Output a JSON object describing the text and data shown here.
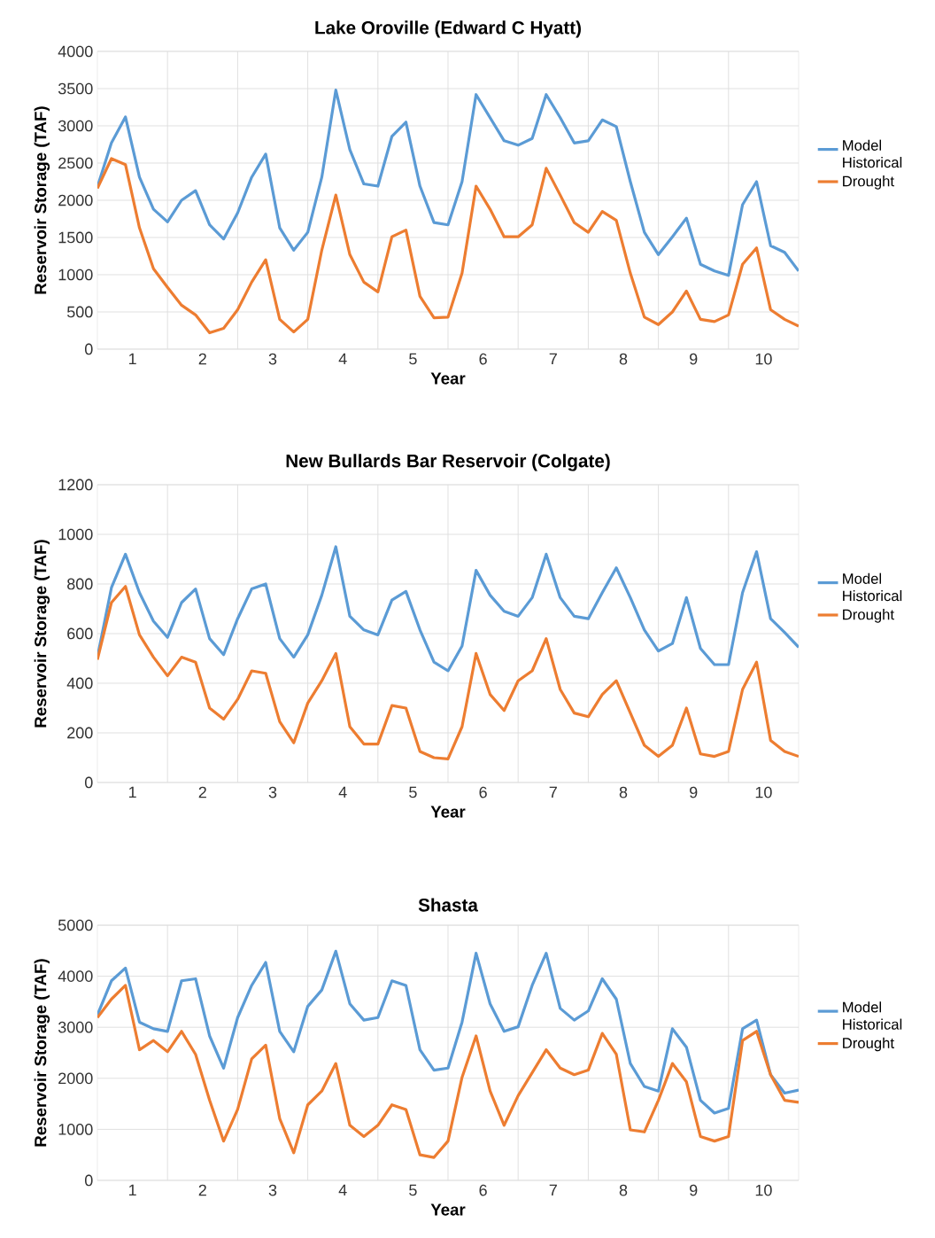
{
  "chart_data": [
    {
      "type": "line",
      "title": "Lake Oroville (Edward C Hyatt)",
      "xlabel": "Year",
      "ylabel": "Reservoir Storage (TAF)",
      "x": [
        0.5,
        0.7,
        0.9,
        1.1,
        1.3,
        1.5,
        1.7,
        1.9,
        2.1,
        2.3,
        2.5,
        2.7,
        2.9,
        3.1,
        3.3,
        3.5,
        3.7,
        3.9,
        4.1,
        4.3,
        4.5,
        4.7,
        4.9,
        5.1,
        5.3,
        5.5,
        5.7,
        5.9,
        6.1,
        6.3,
        6.5,
        6.7,
        6.9,
        7.1,
        7.3,
        7.5,
        7.7,
        7.9,
        8.1,
        8.3,
        8.5,
        8.7,
        8.9,
        9.1,
        9.3,
        9.5,
        9.7,
        9.9,
        10.1,
        10.3,
        10.5
      ],
      "series": [
        {
          "name": "Model Historical",
          "color": "#5b9bd5",
          "values": [
            2180,
            2770,
            3120,
            2310,
            1880,
            1710,
            2000,
            2130,
            1670,
            1480,
            1830,
            2310,
            2620,
            1630,
            1330,
            1570,
            2310,
            3480,
            2680,
            2220,
            2190,
            2860,
            3050,
            2190,
            1700,
            1670,
            2250,
            3420,
            3110,
            2800,
            2740,
            2830,
            3420,
            3110,
            2770,
            2800,
            3080,
            2990,
            2250,
            1570,
            1270,
            1510,
            1760,
            1140,
            1050,
            990,
            1940,
            2250,
            1390,
            1300,
            1050
          ]
        },
        {
          "name": "Drought",
          "color": "#ed7d31",
          "values": [
            2160,
            2560,
            2480,
            1630,
            1080,
            830,
            590,
            460,
            220,
            280,
            530,
            900,
            1200,
            400,
            230,
            400,
            1330,
            2070,
            1270,
            900,
            770,
            1510,
            1600,
            710,
            420,
            430,
            1020,
            2190,
            1880,
            1510,
            1510,
            1670,
            2430,
            2070,
            1700,
            1570,
            1850,
            1730,
            1020,
            430,
            330,
            500,
            780,
            400,
            370,
            460,
            1140,
            1360,
            530,
            400,
            310
          ]
        }
      ],
      "xlim": [
        0.5,
        10.5
      ],
      "ylim": [
        0,
        4000
      ],
      "xticks": [
        1,
        {
          "value": 1.5,
          "label": null
        },
        2,
        {
          "value": 2.5,
          "label": null
        },
        3,
        {
          "value": 3.5,
          "label": null
        },
        4,
        {
          "value": 4.5,
          "label": null
        },
        5,
        {
          "value": 5.5,
          "label": null
        },
        6,
        {
          "value": 6.5,
          "label": null
        },
        7,
        {
          "value": 7.5,
          "label": null
        },
        8,
        {
          "value": 8.5,
          "label": null
        },
        9,
        {
          "value": 9.5,
          "label": null
        },
        10
      ],
      "yticks": [
        0,
        500,
        1000,
        1500,
        2000,
        2500,
        3000,
        3500,
        4000
      ],
      "grid": true,
      "legend": "right"
    },
    {
      "type": "line",
      "title": "New Bullards Bar Reservoir (Colgate)",
      "xlabel": "Year",
      "ylabel": "Reservoir Storage (TAF)",
      "x": [
        0.5,
        0.7,
        0.9,
        1.1,
        1.3,
        1.5,
        1.7,
        1.9,
        2.1,
        2.3,
        2.5,
        2.7,
        2.9,
        3.1,
        3.3,
        3.5,
        3.7,
        3.9,
        4.1,
        4.3,
        4.5,
        4.7,
        4.9,
        5.1,
        5.3,
        5.5,
        5.7,
        5.9,
        6.1,
        6.3,
        6.5,
        6.7,
        6.9,
        7.1,
        7.3,
        7.5,
        7.7,
        7.9,
        8.1,
        8.3,
        8.5,
        8.7,
        8.9,
        9.1,
        9.3,
        9.5,
        9.7,
        9.9,
        10.1,
        10.3,
        10.5
      ],
      "series": [
        {
          "name": "Model Historical",
          "color": "#5b9bd5",
          "values": [
            505,
            785,
            920,
            765,
            650,
            585,
            725,
            780,
            580,
            515,
            660,
            780,
            800,
            580,
            505,
            595,
            755,
            950,
            670,
            615,
            595,
            735,
            770,
            615,
            485,
            450,
            550,
            855,
            755,
            690,
            670,
            745,
            920,
            745,
            670,
            660,
            765,
            865,
            745,
            615,
            530,
            560,
            745,
            540,
            475,
            475,
            765,
            930,
            660,
            605,
            545
          ]
        },
        {
          "name": "Drought",
          "color": "#ed7d31",
          "values": [
            495,
            725,
            790,
            595,
            505,
            430,
            505,
            485,
            300,
            255,
            335,
            450,
            440,
            245,
            160,
            320,
            410,
            520,
            225,
            155,
            155,
            310,
            300,
            125,
            100,
            95,
            225,
            520,
            355,
            290,
            410,
            450,
            580,
            375,
            280,
            265,
            355,
            410,
            280,
            150,
            105,
            150,
            300,
            115,
            105,
            125,
            375,
            485,
            170,
            125,
            105
          ]
        }
      ],
      "xlim": [
        0.5,
        10.5
      ],
      "ylim": [
        0,
        1200
      ],
      "xticks": [
        1,
        {
          "value": 1.5,
          "label": null
        },
        2,
        {
          "value": 2.5,
          "label": null
        },
        3,
        {
          "value": 3.5,
          "label": null
        },
        4,
        {
          "value": 4.5,
          "label": null
        },
        5,
        {
          "value": 5.5,
          "label": null
        },
        6,
        {
          "value": 6.5,
          "label": null
        },
        7,
        {
          "value": 7.5,
          "label": null
        },
        8,
        {
          "value": 8.5,
          "label": null
        },
        9,
        {
          "value": 9.5,
          "label": null
        },
        10
      ],
      "yticks": [
        0,
        200,
        400,
        600,
        800,
        1000,
        1200
      ],
      "grid": true,
      "legend": "right"
    },
    {
      "type": "line",
      "title": "Shasta",
      "xlabel": "Year",
      "ylabel": "Reservoir Storage (TAF)",
      "x": [
        0.5,
        0.7,
        0.9,
        1.1,
        1.3,
        1.5,
        1.7,
        1.9,
        2.1,
        2.3,
        2.5,
        2.7,
        2.9,
        3.1,
        3.3,
        3.5,
        3.7,
        3.9,
        4.1,
        4.3,
        4.5,
        4.7,
        4.9,
        5.1,
        5.3,
        5.5,
        5.7,
        5.9,
        6.1,
        6.3,
        6.5,
        6.7,
        6.9,
        7.1,
        7.3,
        7.5,
        7.7,
        7.9,
        8.1,
        8.3,
        8.5,
        8.7,
        8.9,
        9.1,
        9.3,
        9.5,
        9.7,
        9.9,
        10.1,
        10.3,
        10.5
      ],
      "series": [
        {
          "name": "Model Historical",
          "color": "#5b9bd5",
          "values": [
            3240,
            3910,
            4160,
            3100,
            2970,
            2920,
            3910,
            3950,
            2830,
            2200,
            3190,
            3820,
            4270,
            2920,
            2520,
            3410,
            3730,
            4490,
            3460,
            3140,
            3190,
            3910,
            3820,
            2560,
            2160,
            2200,
            3100,
            4450,
            3460,
            2920,
            3010,
            3820,
            4450,
            3370,
            3140,
            3320,
            3950,
            3550,
            2290,
            1840,
            1750,
            2970,
            2610,
            1570,
            1320,
            1410,
            2970,
            3140,
            2070,
            1710,
            1770
          ]
        },
        {
          "name": "Drought",
          "color": "#ed7d31",
          "values": [
            3190,
            3550,
            3820,
            2560,
            2740,
            2520,
            2920,
            2470,
            1570,
            770,
            1390,
            2380,
            2650,
            1210,
            540,
            1480,
            1750,
            2290,
            1080,
            860,
            1080,
            1480,
            1390,
            500,
            450,
            770,
            2020,
            2830,
            1750,
            1080,
            1660,
            2110,
            2560,
            2200,
            2070,
            2160,
            2880,
            2470,
            990,
            950,
            1570,
            2290,
            1930,
            860,
            770,
            860,
            2740,
            2920,
            2070,
            1570,
            1530
          ]
        }
      ],
      "xlim": [
        0.5,
        10.5
      ],
      "ylim": [
        0,
        5000
      ],
      "xticks": [
        1,
        {
          "value": 1.5,
          "label": null
        },
        2,
        {
          "value": 2.5,
          "label": null
        },
        3,
        {
          "value": 3.5,
          "label": null
        },
        4,
        {
          "value": 4.5,
          "label": null
        },
        5,
        {
          "value": 5.5,
          "label": null
        },
        6,
        {
          "value": 6.5,
          "label": null
        },
        7,
        {
          "value": 7.5,
          "label": null
        },
        8,
        {
          "value": 8.5,
          "label": null
        },
        9,
        {
          "value": 9.5,
          "label": null
        },
        10
      ],
      "yticks": [
        0,
        1000,
        2000,
        3000,
        4000,
        5000
      ],
      "grid": true,
      "legend": "right"
    }
  ]
}
